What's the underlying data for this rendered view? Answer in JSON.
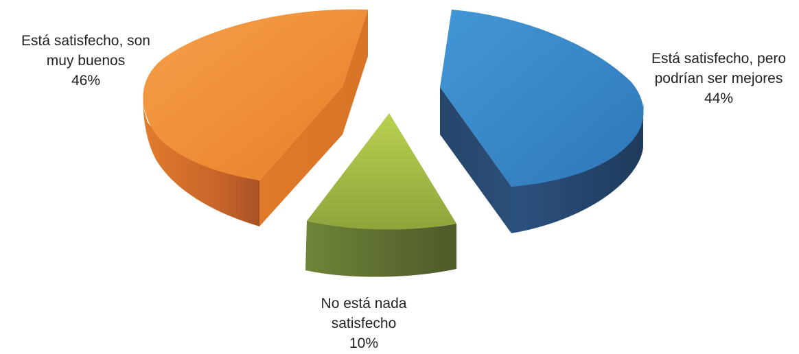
{
  "chart_data": {
    "type": "pie",
    "title": "",
    "style": "3d-exploded",
    "slices": [
      {
        "key": "orange",
        "label_lines": [
          "Está satisfecho, son",
          "muy buenos"
        ],
        "value": 46,
        "value_label": "46%",
        "color_top": "#f0913a",
        "color_side": "#c9651f"
      },
      {
        "key": "blue",
        "label_lines": [
          "Está satisfecho, pero",
          "podrían ser mejores"
        ],
        "value": 44,
        "value_label": "44%",
        "color_top": "#3a86c8",
        "color_side": "#2a4d73"
      },
      {
        "key": "green",
        "label_lines": [
          "No está nada",
          "satisfecho"
        ],
        "value": 10,
        "value_label": "10%",
        "color_top": "#a6c04a",
        "color_side": "#5e6e33"
      }
    ]
  }
}
